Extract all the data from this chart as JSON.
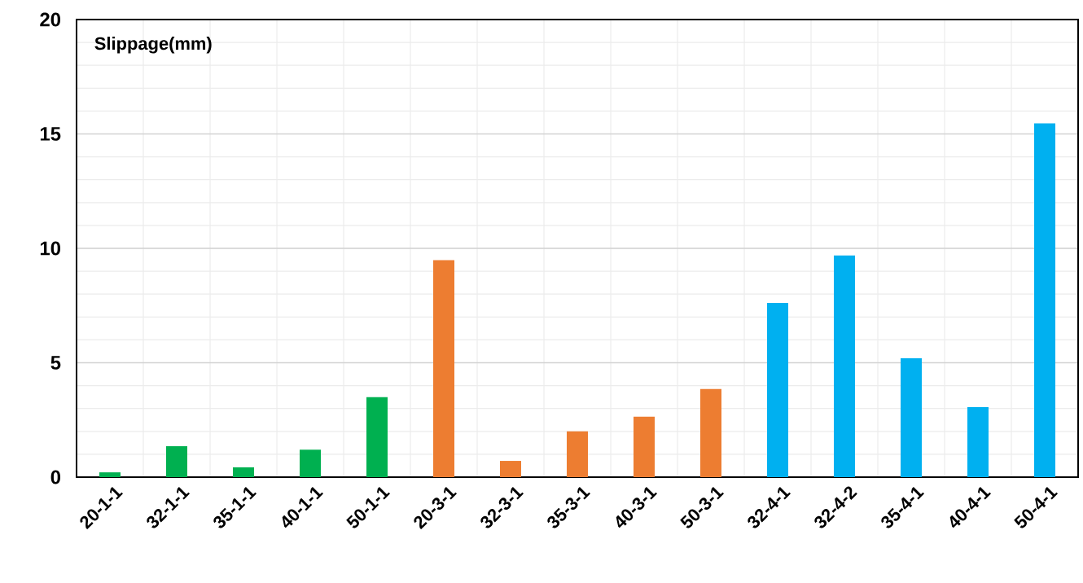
{
  "chart_data": {
    "type": "bar",
    "title": "Slippage(mm)",
    "categories": [
      "20-1-1",
      "32-1-1",
      "35-1-1",
      "40-1-1",
      "50-1-1",
      "20-3-1",
      "32-3-1",
      "35-3-1",
      "40-3-1",
      "50-3-1",
      "32-4-1",
      "32-4-2",
      "35-4-1",
      "40-4-1",
      "50-4-1"
    ],
    "values": [
      0.21,
      1.35,
      0.43,
      1.2,
      3.5,
      9.48,
      0.71,
      2.0,
      2.64,
      3.85,
      7.62,
      9.69,
      5.2,
      3.06,
      15.46
    ],
    "colors": [
      "#00b050",
      "#00b050",
      "#00b050",
      "#00b050",
      "#00b050",
      "#ed7d31",
      "#ed7d31",
      "#ed7d31",
      "#ed7d31",
      "#ed7d31",
      "#00b0f0",
      "#00b0f0",
      "#00b0f0",
      "#00b0f0",
      "#00b0f0"
    ],
    "ylim": [
      0,
      20
    ],
    "yticks": [
      0,
      5,
      10,
      15,
      20
    ],
    "grid": true
  }
}
